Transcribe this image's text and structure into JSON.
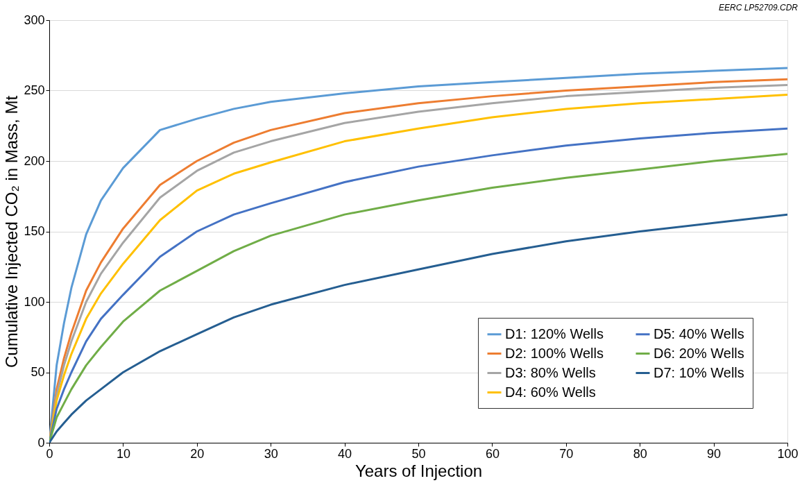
{
  "chart_data": {
    "type": "line",
    "xlabel": "Years of Injection",
    "ylabel": "Cumulative Injected CO₂ in Mass, Mt",
    "annotations": [
      "EERC LP52709.CDR"
    ],
    "x": [
      0,
      1,
      2,
      3,
      5,
      7,
      10,
      15,
      20,
      25,
      30,
      40,
      50,
      60,
      70,
      80,
      90,
      100
    ],
    "xlim": [
      0,
      100
    ],
    "xticks": [
      0,
      10,
      20,
      30,
      40,
      50,
      60,
      70,
      80,
      90,
      100
    ],
    "ylim": [
      0,
      300
    ],
    "yticks": [
      0,
      50,
      100,
      150,
      200,
      250,
      300
    ],
    "grid": "y",
    "legend": "bottom right",
    "line_style": "solid",
    "series": [
      {
        "name": "D1: 120% Wells",
        "color": "#5b9bd5",
        "values": [
          0,
          55,
          85,
          110,
          148,
          172,
          195,
          222,
          230,
          237,
          242,
          248,
          253,
          256,
          259,
          262,
          264,
          266
        ]
      },
      {
        "name": "D2: 100% Wells",
        "color": "#ed7d31",
        "values": [
          0,
          38,
          60,
          78,
          108,
          128,
          152,
          183,
          200,
          213,
          222,
          234,
          241,
          246,
          250,
          253,
          256,
          258
        ]
      },
      {
        "name": "D3: 80% Wells",
        "color": "#a5a5a5",
        "values": [
          0,
          34,
          55,
          72,
          100,
          120,
          142,
          174,
          193,
          206,
          214,
          227,
          235,
          241,
          246,
          249,
          252,
          254
        ]
      },
      {
        "name": "D4: 60% Wells",
        "color": "#ffc000",
        "values": [
          0,
          30,
          48,
          63,
          88,
          106,
          127,
          158,
          179,
          191,
          199,
          214,
          223,
          231,
          237,
          241,
          244,
          247
        ]
      },
      {
        "name": "D5: 40% Wells",
        "color": "#4472c4",
        "values": [
          0,
          24,
          38,
          50,
          72,
          88,
          105,
          132,
          150,
          162,
          170,
          185,
          196,
          204,
          211,
          216,
          220,
          223
        ]
      },
      {
        "name": "D6: 20% Wells",
        "color": "#70ad47",
        "values": [
          0,
          18,
          28,
          38,
          55,
          68,
          86,
          108,
          122,
          136,
          147,
          162,
          172,
          181,
          188,
          194,
          200,
          205
        ]
      },
      {
        "name": "D7: 10% Wells",
        "color": "#255e91",
        "values": [
          0,
          8,
          14,
          20,
          30,
          38,
          50,
          65,
          77,
          89,
          98,
          112,
          123,
          134,
          143,
          150,
          156,
          162
        ]
      }
    ]
  }
}
